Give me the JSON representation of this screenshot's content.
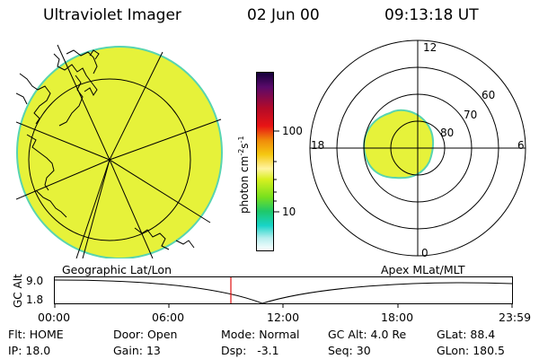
{
  "header": {
    "instrument": "Ultraviolet Imager",
    "date": "02 Jun 00",
    "time": "09:13:18 UT"
  },
  "left_panel": {
    "caption": "Geographic Lat/Lon"
  },
  "right_panel": {
    "caption": "Apex MLat/MLT",
    "mlt_labels": [
      "12",
      "18",
      "6",
      "0"
    ],
    "lat_labels": [
      "60",
      "70",
      "80"
    ]
  },
  "colorbar": {
    "unit_main": "photon cm",
    "unit_exp1": "-2",
    "unit_mid": "s",
    "unit_exp2": "-1",
    "ticks": [
      "100",
      "10"
    ],
    "log_scale": true
  },
  "altitude_plot": {
    "ylabel": "GC Alt",
    "yticks": [
      "9.0",
      "1.8"
    ],
    "xticks": [
      "00:00",
      "06:00",
      "12:00",
      "18:00",
      "23:59"
    ],
    "marker_time": "09:13:18"
  },
  "status": {
    "flt_label": "Flt:",
    "flt_value": "HOME",
    "ip_label": "IP:",
    "ip_value": "18.0",
    "door_label": "Door:",
    "door_value": "Open",
    "gain_label": "Gain:",
    "gain_value": "13",
    "mode_label": "Mode:",
    "mode_value": "Normal",
    "dsp_label": "Dsp:",
    "dsp_value": "-3.1",
    "gcalt_label": "GC Alt:",
    "gcalt_value": "4.0 Re",
    "seq_label": "Seq:",
    "seq_value": "30",
    "glat_label": "GLat:",
    "glat_value": "88.4",
    "glon_label": "GLon:",
    "glon_value": "180.5"
  },
  "colors": {
    "emission": "#e6f23a",
    "emission_edge": "#58d4b0",
    "marker": "#e01010"
  }
}
